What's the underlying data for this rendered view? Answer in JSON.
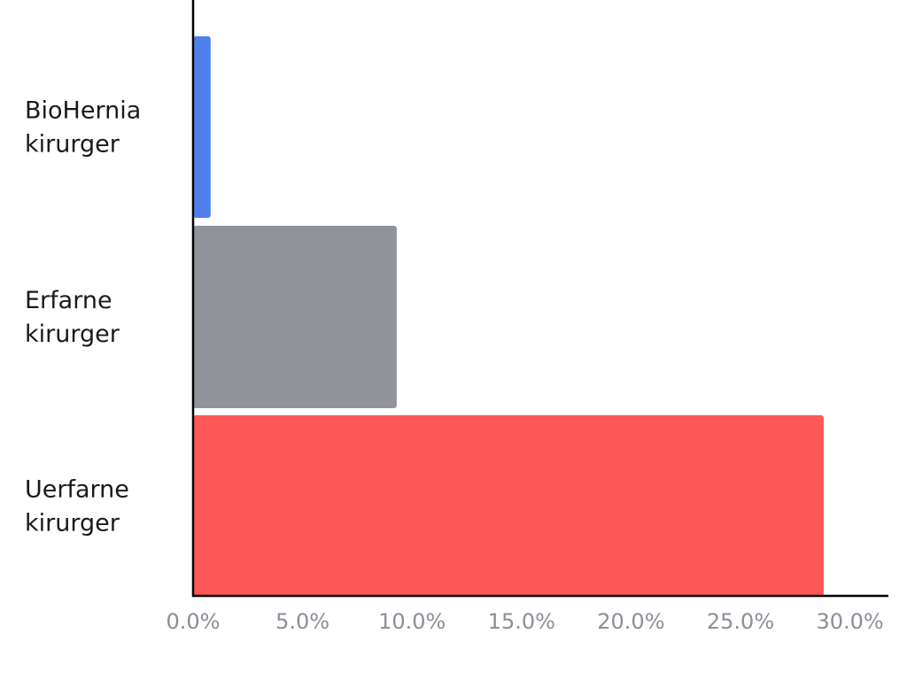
{
  "chart_data": {
    "type": "bar",
    "orientation": "horizontal",
    "categories": [
      [
        "BioHernia",
        "kirurger"
      ],
      [
        "Erfarne",
        "kirurger"
      ],
      [
        "Uerfarne",
        "kirurger"
      ]
    ],
    "values": [
      0.8,
      9.3,
      28.8
    ],
    "colors": [
      "#4f7fea",
      "#909399",
      "#fe5757"
    ],
    "xlim": [
      0,
      31.5
    ],
    "xticks": [
      0,
      5,
      10,
      15,
      20,
      25,
      30
    ],
    "xtick_labels": [
      "0.0%",
      "5.0%",
      "10.0%",
      "15.0%",
      "20.0%",
      "25.0%",
      "30.0%"
    ],
    "title": "",
    "xlabel": "",
    "ylabel": "",
    "grid": false,
    "legend": "none",
    "axis_color": "#000000"
  }
}
